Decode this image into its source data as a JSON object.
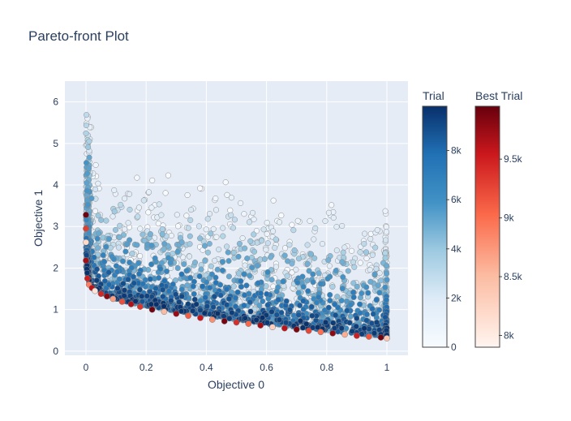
{
  "chart_data": {
    "type": "scatter",
    "title": "Pareto-front Plot",
    "xlabel": "Objective 0",
    "ylabel": "Objective 1",
    "xlim": [
      -0.07,
      1.07
    ],
    "ylim": [
      -0.1,
      6.5
    ],
    "x_ticks": [
      0,
      0.2,
      0.4,
      0.6,
      0.8,
      1
    ],
    "x_tick_labels": [
      "0",
      "0.2",
      "0.4",
      "0.6",
      "0.8",
      "1"
    ],
    "y_ticks": [
      0,
      1,
      2,
      3,
      4,
      5,
      6
    ],
    "y_tick_labels": [
      "0",
      "1",
      "2",
      "3",
      "4",
      "5",
      "6"
    ],
    "grid": true,
    "background": "#e5ecf6",
    "series": [
      {
        "name": "Trial",
        "colorscale": "Blues",
        "color_range": [
          0,
          9800
        ],
        "colorbar_ticks": [
          0,
          2000,
          4000,
          6000,
          8000
        ],
        "colorbar_tick_labels": [
          "0",
          "2k",
          "4k",
          "6k",
          "8k"
        ],
        "approx_point_count": 9800,
        "shape": "point cloud above a convex front; earlier trials lighter and higher",
        "front_samples": {
          "x": [
            0.0,
            0.01,
            0.03,
            0.06,
            0.1,
            0.15,
            0.2,
            0.3,
            0.4,
            0.5,
            0.6,
            0.7,
            0.8,
            0.9,
            1.0
          ],
          "y": [
            2.0,
            1.62,
            1.45,
            1.33,
            1.22,
            1.12,
            1.05,
            0.92,
            0.82,
            0.72,
            0.62,
            0.54,
            0.46,
            0.38,
            0.32
          ]
        }
      },
      {
        "name": "Best Trial",
        "colorscale": "Reds",
        "color_range": [
          7900,
          9950
        ],
        "colorbar_ticks": [
          8000,
          8500,
          9000,
          9500
        ],
        "colorbar_tick_labels": [
          "8k",
          "8.5k",
          "9k",
          "9.5k"
        ],
        "points": {
          "x": [
            0.0,
            0.0,
            0.0,
            0.0,
            0.005,
            0.01,
            0.02,
            0.03,
            0.05,
            0.07,
            0.09,
            0.12,
            0.15,
            0.18,
            0.22,
            0.26,
            0.3,
            0.34,
            0.38,
            0.42,
            0.46,
            0.5,
            0.54,
            0.58,
            0.62,
            0.66,
            0.7,
            0.74,
            0.78,
            0.82,
            0.86,
            0.9,
            0.94,
            0.98,
            1.0
          ],
          "y": [
            3.28,
            2.95,
            2.62,
            2.18,
            1.75,
            1.6,
            1.52,
            1.45,
            1.38,
            1.32,
            1.26,
            1.19,
            1.13,
            1.07,
            1.0,
            0.95,
            0.9,
            0.85,
            0.8,
            0.76,
            0.72,
            0.69,
            0.66,
            0.62,
            0.58,
            0.55,
            0.52,
            0.49,
            0.46,
            0.43,
            0.4,
            0.37,
            0.35,
            0.33,
            0.31
          ],
          "trial": [
            9920,
            9300,
            8200,
            9700,
            9500,
            8900,
            9600,
            8100,
            9450,
            9800,
            8700,
            9200,
            9650,
            9350,
            9900,
            8500,
            9750,
            9100,
            9550,
            8800,
            9880,
            9400,
            9050,
            9700,
            8300,
            9600,
            9850,
            9250,
            9000,
            9780,
            8600,
            9500,
            9150,
            9900,
            8400
          ]
        }
      }
    ]
  }
}
